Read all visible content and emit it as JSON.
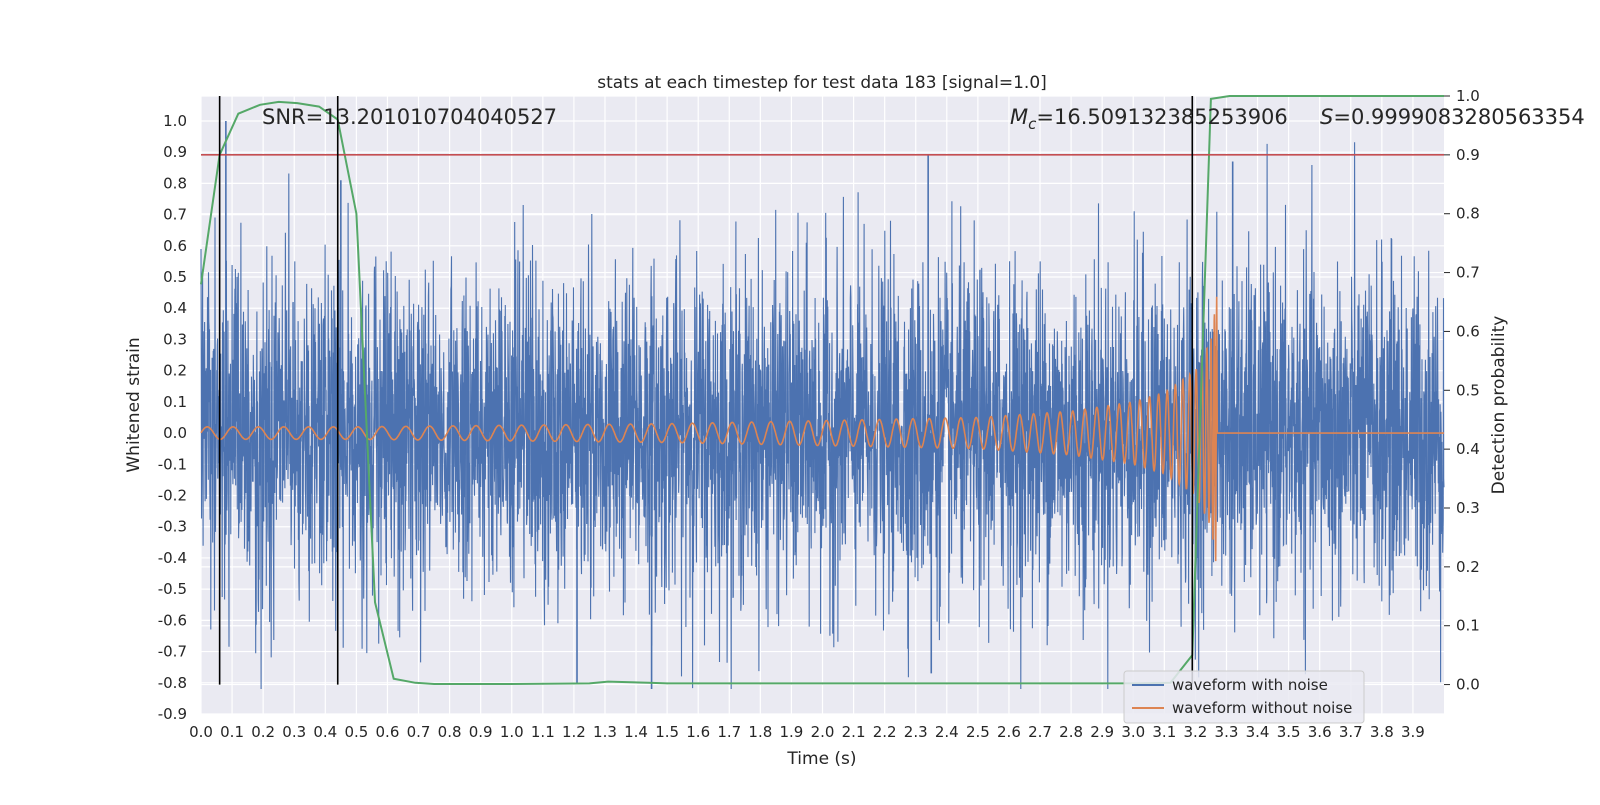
{
  "chart_data": {
    "type": "line",
    "title": "stats at each timestep for test data 183 [signal=1.0]",
    "xlabel": "Time (s)",
    "ylabel_left": "Whitened strain",
    "ylabel_right": "Detection probability",
    "xlim": [
      0.0,
      4.0
    ],
    "ylim_left": [
      -0.9,
      1.08
    ],
    "ylim_right": [
      -0.05,
      1.0
    ],
    "grid": true,
    "x_ticks": [
      "0.0",
      "0.1",
      "0.2",
      "0.3",
      "0.4",
      "0.5",
      "0.6",
      "0.7",
      "0.8",
      "0.9",
      "1.0",
      "1.1",
      "1.2",
      "1.3",
      "1.4",
      "1.5",
      "1.6",
      "1.7",
      "1.8",
      "1.9",
      "2.0",
      "2.1",
      "2.2",
      "2.3",
      "2.4",
      "2.5",
      "2.6",
      "2.7",
      "2.8",
      "2.9",
      "3.0",
      "3.1",
      "3.2",
      "3.3",
      "3.4",
      "3.5",
      "3.6",
      "3.7",
      "3.8",
      "3.9"
    ],
    "y_ticks_left": [
      "-0.9",
      "-0.8",
      "-0.7",
      "-0.6",
      "-0.5",
      "-0.4",
      "-0.3",
      "-0.2",
      "-0.1",
      "0.0",
      "0.1",
      "0.2",
      "0.3",
      "0.4",
      "0.5",
      "0.6",
      "0.7",
      "0.8",
      "0.9",
      "1.0"
    ],
    "y_ticks_right": [
      "0.0",
      "0.1",
      "0.2",
      "0.3",
      "0.4",
      "0.5",
      "0.6",
      "0.7",
      "0.8",
      "0.9",
      "1.0"
    ],
    "annotations": {
      "snr": "SNR=13.201010704040527",
      "mc_symbol": "M",
      "mc_sub": "c",
      "mc_value": "=16.509132385253906",
      "s_symbol": "S",
      "s_value": "=0.9999083280563354"
    },
    "threshold_line": {
      "axis": "right",
      "y": 0.9,
      "color": "#c44e52"
    },
    "vertical_markers_x": [
      0.06,
      0.44,
      3.19
    ],
    "legend": {
      "placement": "lower-right",
      "entries": [
        "waveform with noise",
        "waveform without noise"
      ]
    },
    "colors": {
      "noisy": "#4c72b0",
      "clean": "#dd8452",
      "probability": "#55a868",
      "threshold": "#c44e52",
      "marker": "#000000",
      "panel_bg": "#eaeaf2"
    },
    "series": [
      {
        "name": "waveform with noise",
        "axis": "left",
        "style": "dense-noise",
        "x_range": [
          0.0,
          4.0
        ],
        "approx_std": 0.26,
        "approx_range": [
          -0.82,
          1.0
        ],
        "notable_peaks": [
          {
            "x": 0.08,
            "y": 1.0
          },
          {
            "x": 2.34,
            "y": 0.89
          },
          {
            "x": 3.32,
            "y": 0.87
          },
          {
            "x": 0.45,
            "y": 0.81
          },
          {
            "x": 1.45,
            "y": -0.82
          },
          {
            "x": 1.21,
            "y": -0.8
          },
          {
            "x": 2.35,
            "y": -0.77
          }
        ]
      },
      {
        "name": "waveform without noise",
        "axis": "left",
        "style": "chirp",
        "x": [
          0.0,
          0.5,
          1.0,
          1.5,
          2.0,
          2.5,
          2.8,
          3.0,
          3.1,
          3.2,
          3.25,
          3.27,
          3.3,
          4.0
        ],
        "amplitude": [
          0.02,
          0.02,
          0.025,
          0.03,
          0.04,
          0.05,
          0.07,
          0.1,
          0.13,
          0.2,
          0.3,
          0.45,
          0.0,
          0.0
        ],
        "approx_peak_envelope": [
          0.52,
          -0.6
        ],
        "merger_time": 3.27
      },
      {
        "name": "detection probability",
        "axis": "right",
        "x": [
          0.0,
          0.06,
          0.12,
          0.19,
          0.25,
          0.31,
          0.38,
          0.44,
          0.5,
          0.56,
          0.62,
          0.69,
          0.75,
          0.88,
          1.0,
          1.25,
          1.31,
          1.44,
          1.5,
          2.0,
          2.5,
          3.0,
          3.12,
          3.19,
          3.25,
          3.31,
          3.5,
          4.0
        ],
        "values": [
          0.68,
          0.9,
          0.97,
          0.985,
          0.99,
          0.988,
          0.982,
          0.96,
          0.8,
          0.14,
          0.01,
          0.003,
          0.001,
          0.001,
          0.001,
          0.002,
          0.005,
          0.003,
          0.002,
          0.002,
          0.002,
          0.002,
          0.003,
          0.05,
          0.995,
          1.0,
          1.0,
          1.0
        ]
      }
    ]
  }
}
